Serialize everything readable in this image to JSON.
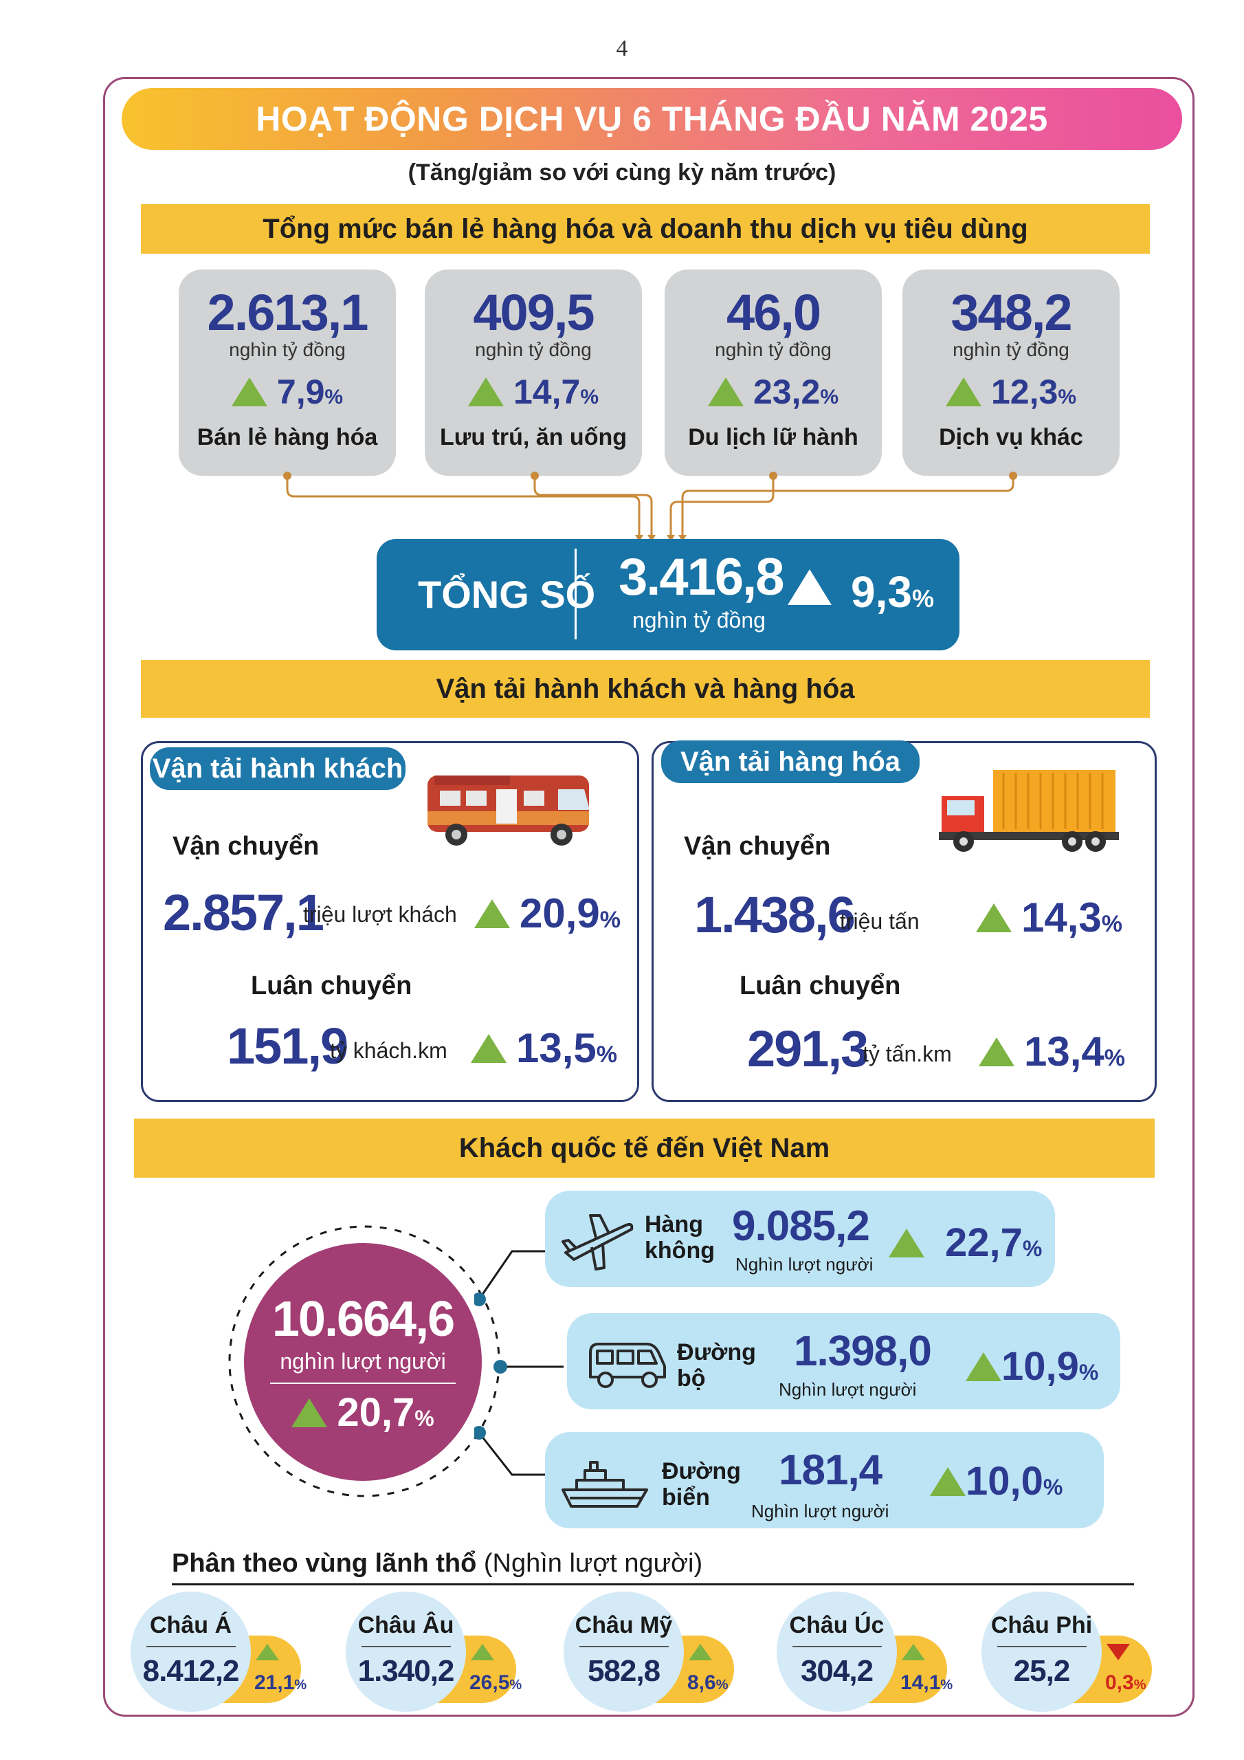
{
  "page_number": "4",
  "title": "HOẠT ĐỘNG DỊCH VỤ 6 THÁNG ĐẦU NĂM 2025",
  "subtitle": "(Tăng/giảm so với cùng kỳ năm trước)",
  "retail": {
    "heading": "Tổng mức bán lẻ hàng hóa và doanh thu dịch vụ tiêu dùng",
    "cards": [
      {
        "value": "2.613,1",
        "unit": "nghìn tỷ đồng",
        "pct": "7,9",
        "label": "Bán lẻ hàng hóa"
      },
      {
        "value": "409,5",
        "unit": "nghìn tỷ đồng",
        "pct": "14,7",
        "label": "Lưu trú, ăn uống"
      },
      {
        "value": "46,0",
        "unit": "nghìn tỷ đồng",
        "pct": "23,2",
        "label": "Du lịch lữ hành"
      },
      {
        "value": "348,2",
        "unit": "nghìn tỷ đồng",
        "pct": "12,3",
        "label": "Dịch vụ khác"
      }
    ],
    "total": {
      "label": "TỔNG SỐ",
      "value": "3.416,8",
      "unit": "nghìn tỷ đồng",
      "pct": "9,3"
    }
  },
  "percent_sign": "%",
  "transport": {
    "heading": "Vận tải hành khách và hàng hóa",
    "passenger": {
      "tab": "Vận tải hành khách",
      "carry_label": "Vận chuyển",
      "carry_value": "2.857,1",
      "carry_unit": "triệu lượt khách",
      "carry_pct": "20,9",
      "rotate_label": "Luân chuyển",
      "rotate_value": "151,9",
      "rotate_unit": "tỷ khách.km",
      "rotate_pct": "13,5"
    },
    "cargo": {
      "tab": "Vận tải hàng hóa",
      "carry_label": "Vận chuyển",
      "carry_value": "1.438,6",
      "carry_unit": "triệu tấn",
      "carry_pct": "14,3",
      "rotate_label": "Luân chuyển",
      "rotate_value": "291,3",
      "rotate_unit": "tỷ tấn.km",
      "rotate_pct": "13,4"
    }
  },
  "intl": {
    "heading": "Khách quốc tế đến Việt Nam",
    "total_value": "10.664,6",
    "total_unit": "nghìn lượt người",
    "total_pct": "20,7",
    "modes": [
      {
        "name_1": "Hàng",
        "name_2": "không",
        "value": "9.085,2",
        "unit": "Nghìn lượt người",
        "pct": "22,7",
        "icon": "airplane-icon"
      },
      {
        "name_1": "Đường",
        "name_2": "bộ",
        "value": "1.398,0",
        "unit": "Nghìn lượt người",
        "pct": "10,9",
        "icon": "van-icon"
      },
      {
        "name_1": "Đường",
        "name_2": "biển",
        "value": "181,4",
        "unit": "Nghìn lượt người",
        "pct": "10,0",
        "icon": "ship-icon"
      }
    ],
    "region_heading": "Phân theo vùng lãnh thổ",
    "region_unit": "(Nghìn lượt người)",
    "regions": [
      {
        "name": "Châu Á",
        "value": "8.412,2",
        "pct": "21,1",
        "trend": "up"
      },
      {
        "name": "Châu Âu",
        "value": "1.340,2",
        "pct": "26,5",
        "trend": "up"
      },
      {
        "name": "Châu Mỹ",
        "value": "582,8",
        "pct": "8,6",
        "trend": "up"
      },
      {
        "name": "Châu Úc",
        "value": "304,2",
        "pct": "14,1",
        "trend": "up"
      },
      {
        "name": "Châu Phi",
        "value": "25,2",
        "pct": "0,3",
        "trend": "down"
      }
    ]
  },
  "colors": {
    "accent_blue": "#2c3a8f",
    "up_green": "#7cb342",
    "down_red": "#d0271c",
    "total_bg": "#1873a6",
    "bar_yellow": "#f6c23a",
    "frame": "#9b4a78"
  }
}
